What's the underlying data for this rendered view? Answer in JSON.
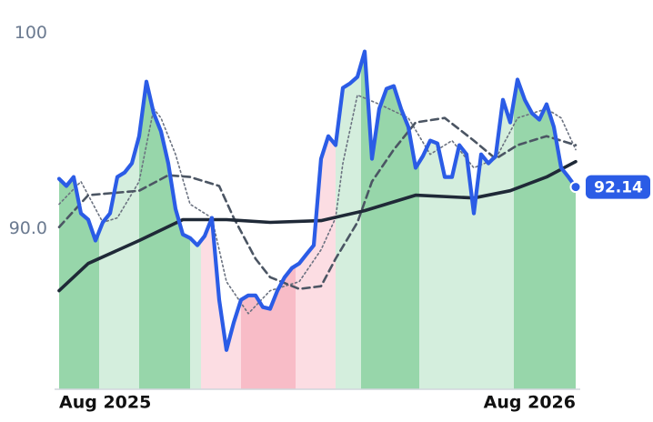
{
  "chart_data": {
    "type": "line",
    "x": [
      0,
      1,
      2,
      3,
      4,
      5,
      6,
      7,
      8,
      9,
      10,
      11,
      12,
      13,
      14,
      15,
      16,
      17,
      18,
      19,
      20,
      21,
      22,
      23,
      24,
      25,
      26,
      27,
      28,
      29,
      30,
      31,
      32,
      33,
      34,
      35,
      36,
      37,
      38,
      39,
      40,
      41,
      42,
      43,
      44,
      45,
      46,
      47,
      48,
      49,
      50,
      51,
      52,
      53,
      54,
      55,
      56,
      57,
      58,
      59,
      60,
      61,
      62,
      63,
      64,
      65,
      66,
      67,
      68,
      69,
      70,
      71
    ],
    "xlim": [
      0,
      71
    ],
    "xticks": [
      {
        "value": 0,
        "label": "Aug 2025"
      },
      {
        "value": 71,
        "label": "Aug 2026"
      }
    ],
    "ylim": [
      81.8,
      101.7
    ],
    "yticks": [
      {
        "value": 90,
        "label": "90.0"
      },
      100
    ],
    "grid": false,
    "regions": [
      {
        "start": 0,
        "end": 5.5,
        "color": "#97d6aa"
      },
      {
        "start": 5.5,
        "end": 11,
        "color": "#d4eedd"
      },
      {
        "start": 11,
        "end": 18,
        "color": "#97d6aa"
      },
      {
        "start": 18,
        "end": 19.5,
        "color": "#d4eedd"
      },
      {
        "start": 19.5,
        "end": 25,
        "color": "#fcdde3"
      },
      {
        "start": 25,
        "end": 32.5,
        "color": "#f8bcc7"
      },
      {
        "start": 32.5,
        "end": 38,
        "color": "#fcdde3"
      },
      {
        "start": 38,
        "end": 41.5,
        "color": "#d4eedd"
      },
      {
        "start": 41.5,
        "end": 49.5,
        "color": "#97d6aa"
      },
      {
        "start": 49.5,
        "end": 62.5,
        "color": "#d4eedd"
      },
      {
        "start": 62.5,
        "end": 71,
        "color": "#97d6aa"
      }
    ],
    "series": [
      {
        "color": "#6b7280",
        "style": "dotted",
        "x": [
          0,
          3,
          6,
          8,
          11,
          13,
          14,
          16,
          18,
          21,
          23,
          26,
          29,
          33,
          36,
          38,
          39,
          41,
          44,
          48,
          51,
          54,
          57,
          60,
          63,
          67,
          69,
          71
        ],
        "values": [
          91.26,
          92.42,
          90.33,
          90.56,
          92.42,
          96.14,
          95.67,
          93.81,
          91.26,
          90.56,
          87.3,
          85.67,
          86.84,
          87.3,
          88.93,
          90.56,
          93.35,
          96.84,
          96.37,
          95.67,
          93.81,
          94.51,
          93.12,
          93.58,
          95.67,
          96.14,
          95.67,
          94.05
        ]
      },
      {
        "color": "#4b5563",
        "style": "dashed",
        "x": [
          0,
          4,
          11,
          15,
          18,
          22,
          24,
          27,
          29,
          33,
          36,
          38,
          41,
          43,
          46,
          49,
          53,
          57,
          60,
          63,
          67,
          71
        ],
        "values": [
          90.09,
          91.72,
          91.95,
          92.74,
          92.65,
          92.19,
          90.56,
          88.47,
          87.53,
          86.93,
          87.07,
          88.47,
          90.33,
          92.42,
          94.05,
          95.44,
          95.67,
          94.51,
          93.58,
          94.28,
          94.74,
          94.28
        ]
      },
      {
        "color": "#1f2937",
        "style": "solid",
        "x": [
          0,
          4,
          11,
          17,
          23,
          29,
          36,
          42,
          49,
          57,
          62,
          67,
          71
        ],
        "values": [
          86.84,
          88.23,
          89.4,
          90.47,
          90.47,
          90.33,
          90.42,
          90.93,
          91.72,
          91.58,
          91.95,
          92.65,
          93.44
        ]
      },
      {
        "color": "#2b5ce6",
        "style": "price",
        "values": [
          92.56,
          92.19,
          92.65,
          90.79,
          90.47,
          89.4,
          90.33,
          90.79,
          92.65,
          92.88,
          93.35,
          94.74,
          97.53,
          95.91,
          94.98,
          93.35,
          91.02,
          89.72,
          89.53,
          89.16,
          89.63,
          90.56,
          86.37,
          83.81,
          85.21,
          86.37,
          86.6,
          86.6,
          86.0,
          85.91,
          86.84,
          87.53,
          88.0,
          88.23,
          88.7,
          89.16,
          93.58,
          94.74,
          94.28,
          97.21,
          97.44,
          97.77,
          99.07,
          93.58,
          96.14,
          97.16,
          97.3,
          96.14,
          95.21,
          93.12,
          93.72,
          94.51,
          94.37,
          92.65,
          92.65,
          94.28,
          93.81,
          90.79,
          93.81,
          93.35,
          93.72,
          96.6,
          95.44,
          97.63,
          96.6,
          95.91,
          95.58,
          96.37,
          95.21,
          93.12,
          92.65,
          92.14
        ]
      }
    ]
  }
}
